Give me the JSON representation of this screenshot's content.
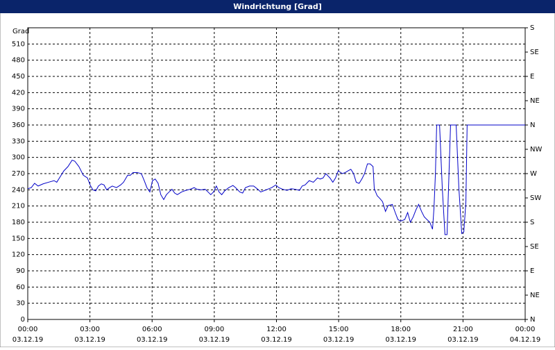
{
  "chart_data": {
    "type": "line",
    "title": "Windrichtung [Grad]",
    "y_label": "Grad",
    "x": [
      0,
      0.17,
      0.33,
      0.5,
      0.74,
      1.0,
      1.27,
      1.4,
      1.61,
      1.74,
      1.94,
      2.14,
      2.27,
      2.47,
      2.68,
      2.88,
      3.01,
      3.14,
      3.28,
      3.41,
      3.55,
      3.68,
      3.81,
      3.95,
      4.08,
      4.28,
      4.48,
      4.62,
      4.82,
      4.95,
      5.08,
      5.28,
      5.48,
      5.62,
      5.75,
      5.89,
      6.02,
      6.15,
      6.29,
      6.42,
      6.56,
      6.69,
      6.82,
      6.96,
      7.09,
      7.22,
      7.42,
      7.63,
      7.83,
      8.03,
      8.16,
      8.36,
      8.56,
      8.7,
      8.83,
      8.96,
      9.1,
      9.23,
      9.36,
      9.5,
      9.7,
      9.9,
      10.03,
      10.23,
      10.37,
      10.5,
      10.7,
      10.9,
      11.1,
      11.24,
      11.44,
      11.57,
      11.77,
      11.97,
      12.11,
      12.31,
      12.51,
      12.71,
      12.91,
      13.11,
      13.24,
      13.38,
      13.58,
      13.78,
      13.98,
      14.11,
      14.25,
      14.38,
      14.58,
      14.72,
      14.85,
      14.98,
      15.18,
      15.32,
      15.45,
      15.59,
      15.72,
      15.85,
      15.99,
      16.12,
      16.25,
      16.39,
      16.52,
      16.66,
      16.72,
      16.86,
      16.99,
      17.12,
      17.26,
      17.39,
      17.59,
      17.73,
      17.86,
      17.99,
      18.19,
      18.33,
      18.46,
      18.6,
      18.73,
      18.86,
      19.0,
      19.13,
      19.26,
      19.4,
      19.53,
      19.6,
      19.67,
      19.73,
      19.87,
      20.0,
      20.13,
      20.23,
      20.4,
      20.67,
      20.8,
      20.94,
      21.04,
      21.14,
      21.2,
      24
    ],
    "series": [
      {
        "name": "Windrichtung",
        "color": "#0000c8",
        "values": [
          242,
          244,
          252,
          247,
          251,
          254,
          257,
          254,
          267,
          275,
          283,
          295,
          293,
          283,
          267,
          262,
          249,
          240,
          238,
          247,
          251,
          249,
          240,
          244,
          247,
          244,
          249,
          254,
          267,
          267,
          272,
          272,
          270,
          257,
          244,
          236,
          257,
          260,
          252,
          231,
          222,
          231,
          236,
          241,
          234,
          231,
          236,
          239,
          241,
          244,
          241,
          240,
          241,
          236,
          231,
          236,
          247,
          236,
          231,
          238,
          244,
          248,
          244,
          236,
          234,
          244,
          247,
          247,
          241,
          236,
          239,
          241,
          244,
          249,
          244,
          241,
          239,
          242,
          241,
          239,
          247,
          249,
          257,
          254,
          262,
          260,
          262,
          270,
          262,
          254,
          262,
          275,
          270,
          272,
          275,
          278,
          270,
          254,
          252,
          260,
          270,
          288,
          288,
          283,
          242,
          229,
          224,
          218,
          200,
          211,
          213,
          198,
          185,
          182,
          185,
          198,
          180,
          190,
          203,
          213,
          200,
          190,
          185,
          180,
          167,
          206,
          270,
          360,
          360,
          244,
          157,
          157,
          360,
          360,
          244,
          159,
          162,
          218,
          360,
          360
        ]
      }
    ],
    "xlim": [
      0,
      24
    ],
    "xticks": [
      {
        "value": 0,
        "label": "00:00\n03.12.19"
      },
      {
        "value": 3,
        "label": "03:00\n03.12.19"
      },
      {
        "value": 6,
        "label": "06:00\n03.12.19"
      },
      {
        "value": 9,
        "label": "09:00\n03.12.19"
      },
      {
        "value": 12,
        "label": "12:00\n03.12.19"
      },
      {
        "value": 15,
        "label": "15:00\n03.12.19"
      },
      {
        "value": 18,
        "label": "18:00\n03.12.19"
      },
      {
        "value": 21,
        "label": "21:00\n03.12.19"
      },
      {
        "value": 24,
        "label": "00:00\n04.12.19"
      }
    ],
    "ylim": [
      0,
      540
    ],
    "yticks": [
      0,
      30,
      60,
      90,
      120,
      150,
      180,
      210,
      240,
      270,
      300,
      330,
      360,
      390,
      420,
      450,
      480,
      510
    ],
    "y2lim": [
      0,
      540
    ],
    "y2ticks": [
      {
        "value": 0,
        "label": "N"
      },
      {
        "value": 45,
        "label": "NE"
      },
      {
        "value": 90,
        "label": "E"
      },
      {
        "value": 135,
        "label": "SE"
      },
      {
        "value": 180,
        "label": "S"
      },
      {
        "value": 225,
        "label": "SW"
      },
      {
        "value": 270,
        "label": "W"
      },
      {
        "value": 315,
        "label": "NW"
      },
      {
        "value": 360,
        "label": "N"
      },
      {
        "value": 405,
        "label": "NE"
      },
      {
        "value": 450,
        "label": "E"
      },
      {
        "value": 495,
        "label": "SE"
      },
      {
        "value": 540,
        "label": "S"
      }
    ],
    "grid": true
  }
}
